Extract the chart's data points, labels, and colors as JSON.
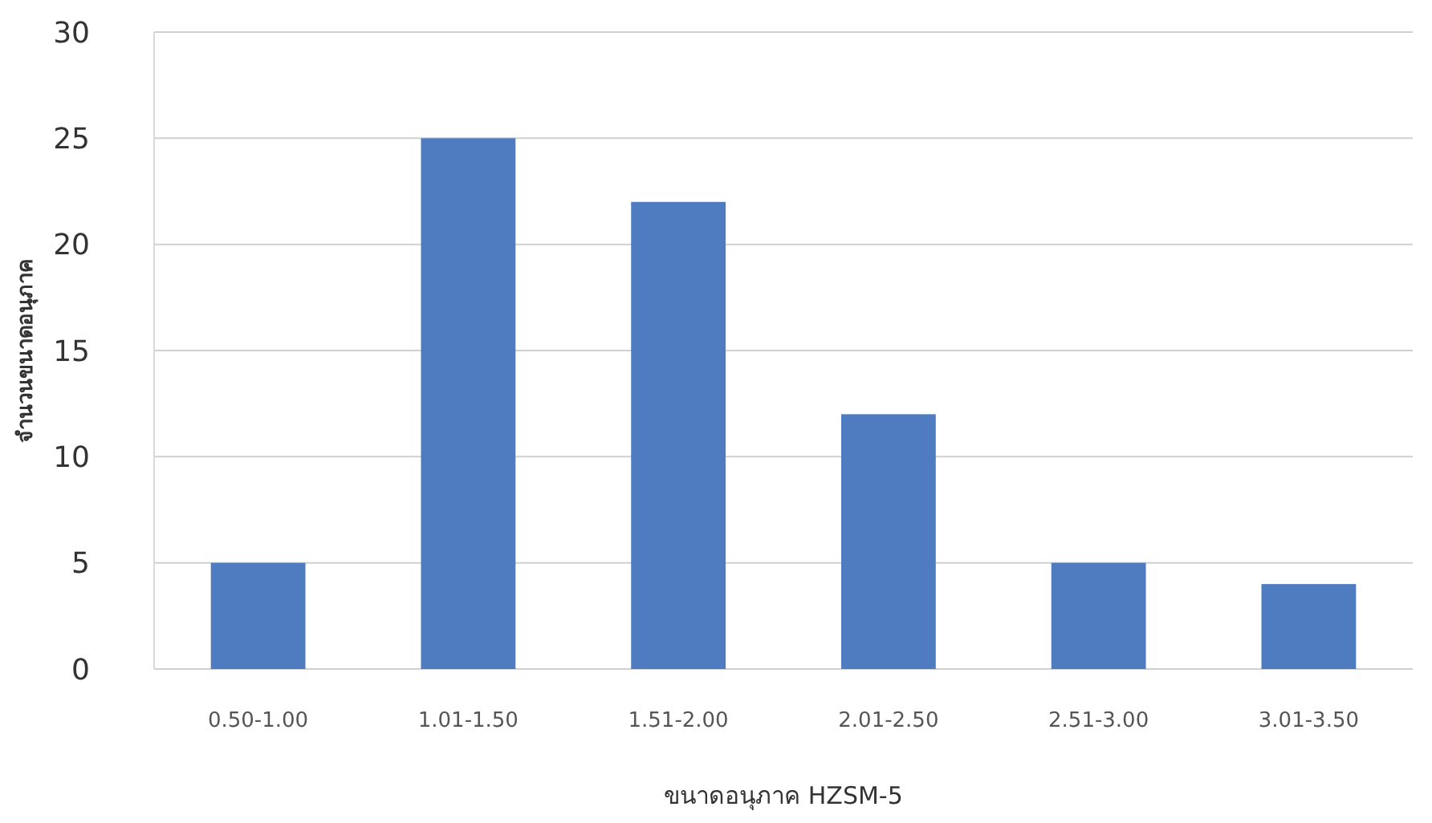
{
  "chart_data": {
    "type": "bar",
    "categories": [
      "0.50-1.00",
      "1.01-1.50",
      "1.51-2.00",
      "2.01-2.50",
      "2.51-3.00",
      "3.01-3.50"
    ],
    "values": [
      5,
      25,
      22,
      12,
      5,
      4
    ],
    "color": "#4f7bc0",
    "xlabel": "ขนาดอนุภาค HZSM-5",
    "ylabel": "จำนวนขนาดอนุภาค",
    "ylim": [
      0,
      30
    ],
    "yticks": [
      0,
      5,
      10,
      15,
      20,
      25,
      30
    ],
    "grid": "y"
  }
}
